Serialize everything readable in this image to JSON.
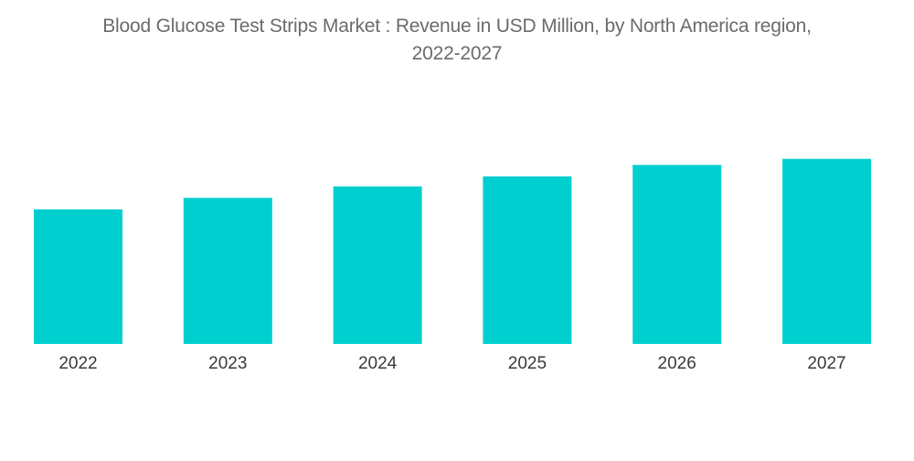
{
  "chart_data": {
    "type": "bar",
    "title_line1": "Blood Glucose Test Strips Market : Revenue in USD Million, by North America region,",
    "title_line2": "2022-2027",
    "xlabel": "",
    "ylabel": "",
    "categories": [
      "2022",
      "2023",
      "2024",
      "2025",
      "2026",
      "2027"
    ],
    "values": [
      100,
      108.5,
      117,
      124.5,
      133,
      137.5
    ],
    "ylim": [
      0,
      140
    ],
    "grid": false,
    "legend": "none",
    "bar_color": "#00cfcf"
  }
}
